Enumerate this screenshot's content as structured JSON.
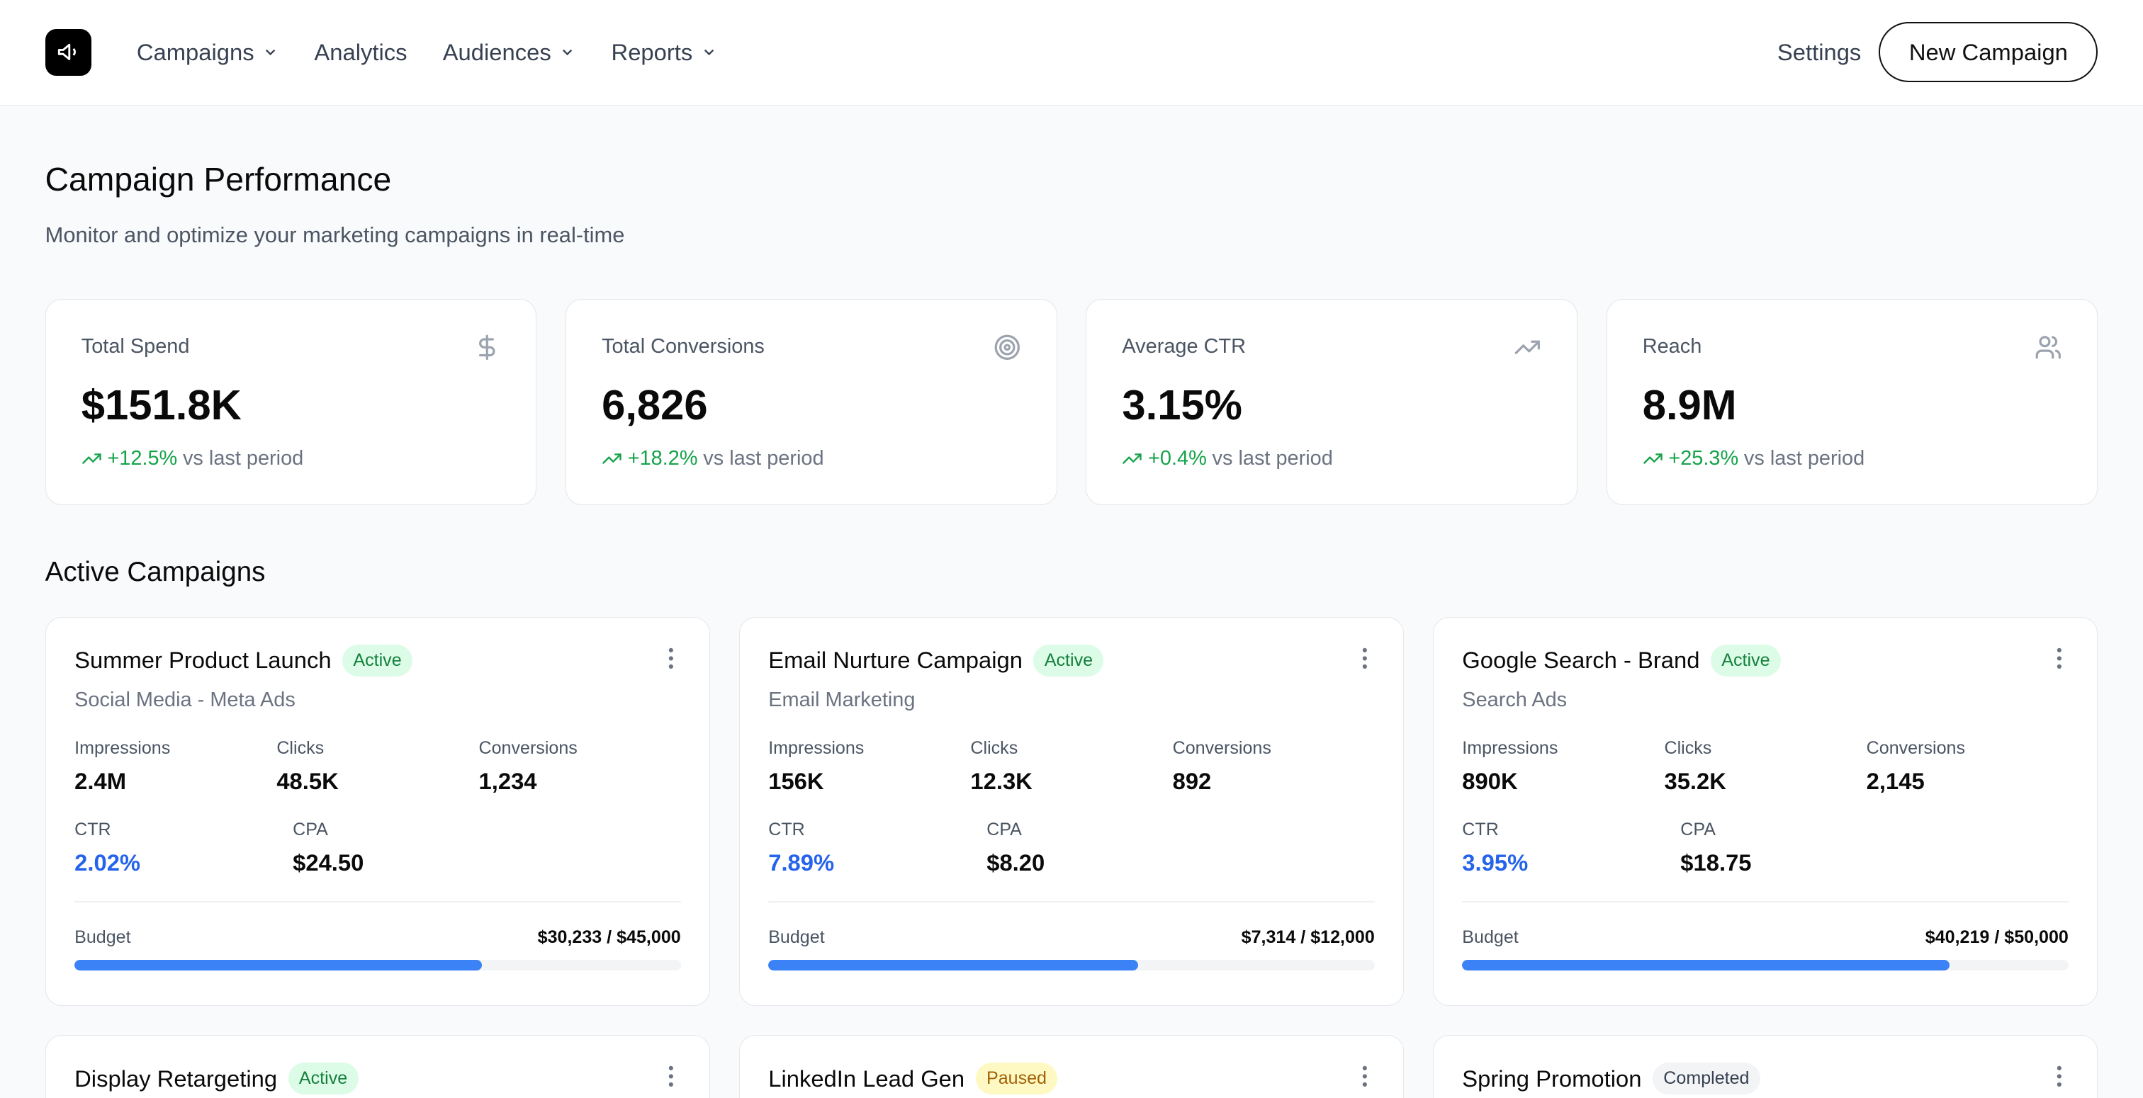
{
  "nav": {
    "items": [
      {
        "label": "Campaigns",
        "dropdown": true
      },
      {
        "label": "Analytics",
        "dropdown": false
      },
      {
        "label": "Audiences",
        "dropdown": true
      },
      {
        "label": "Reports",
        "dropdown": true
      }
    ],
    "settings": "Settings",
    "new_campaign": "New Campaign",
    "logo_icon": "megaphone-icon"
  },
  "page": {
    "title": "Campaign Performance",
    "subtitle": "Monitor and optimize your marketing campaigns in real-time",
    "section_title": "Active Campaigns"
  },
  "stats": [
    {
      "label": "Total Spend",
      "value": "$151.8K",
      "change": "+12.5%",
      "suffix": "vs last period",
      "icon": "dollar-icon"
    },
    {
      "label": "Total Conversions",
      "value": "6,826",
      "change": "+18.2%",
      "suffix": "vs last period",
      "icon": "target-icon"
    },
    {
      "label": "Average CTR",
      "value": "3.15%",
      "change": "+0.4%",
      "suffix": "vs last period",
      "icon": "trending-up-icon"
    },
    {
      "label": "Reach",
      "value": "8.9M",
      "change": "+25.3%",
      "suffix": "vs last period",
      "icon": "users-icon"
    }
  ],
  "labels": {
    "impressions": "Impressions",
    "clicks": "Clicks",
    "conversions": "Conversions",
    "ctr": "CTR",
    "cpa": "CPA",
    "budget": "Budget"
  },
  "campaigns": [
    {
      "name": "Summer Product Launch",
      "status": "Active",
      "channel": "Social Media - Meta Ads",
      "impressions": "2.4M",
      "clicks": "48.5K",
      "conversions": "1,234",
      "ctr": "2.02%",
      "cpa": "$24.50",
      "budget_text": "$30,233 / $45,000",
      "spent": 30233,
      "budget": 45000
    },
    {
      "name": "Email Nurture Campaign",
      "status": "Active",
      "channel": "Email Marketing",
      "impressions": "156K",
      "clicks": "12.3K",
      "conversions": "892",
      "ctr": "7.89%",
      "cpa": "$8.20",
      "budget_text": "$7,314 / $12,000",
      "spent": 7314,
      "budget": 12000
    },
    {
      "name": "Google Search - Brand",
      "status": "Active",
      "channel": "Search Ads",
      "impressions": "890K",
      "clicks": "35.2K",
      "conversions": "2,145",
      "ctr": "3.95%",
      "cpa": "$18.75",
      "budget_text": "$40,219 / $50,000",
      "spent": 40219,
      "budget": 50000
    },
    {
      "name": "Display Retargeting",
      "status": "Active"
    },
    {
      "name": "LinkedIn Lead Gen",
      "status": "Paused"
    },
    {
      "name": "Spring Promotion",
      "status": "Completed"
    }
  ],
  "colors": {
    "accent": "#3b82f6",
    "positive": "#16a34a",
    "ctr": "#2563eb"
  }
}
